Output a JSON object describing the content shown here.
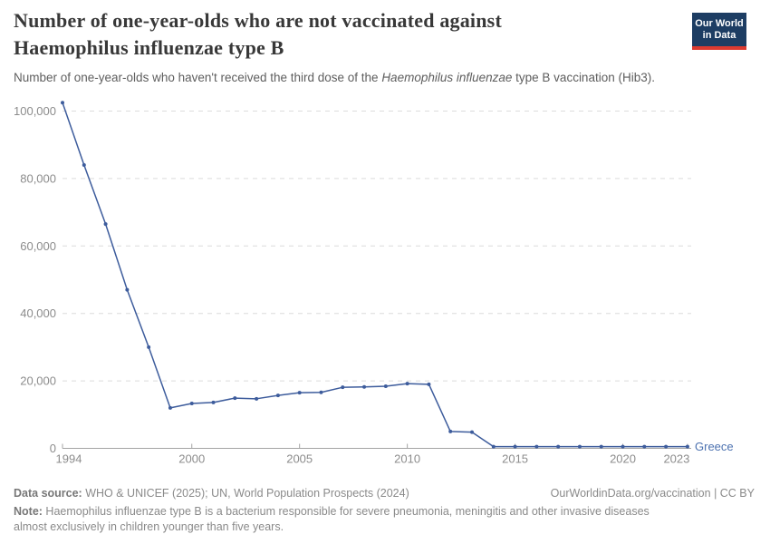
{
  "header": {
    "title": "Number of one-year-olds who are not vaccinated against Haemophilus influenzae type B",
    "subtitle_prefix": "Number of one-year-olds who haven't received the third dose of the ",
    "subtitle_italic": "Haemophilus influenzae",
    "subtitle_suffix": " type B vaccination (Hib3).",
    "logo_line1": "Our World",
    "logo_line2": "in Data"
  },
  "footer": {
    "data_source_label": "Data source:",
    "data_source_text": " WHO & UNICEF (2025); UN, World Population Prospects (2024)",
    "link_text": "OurWorldinData.org/vaccination | CC BY",
    "note_label": "Note:",
    "note_text": " Haemophilus influenzae type B is a bacterium responsible for severe pneumonia, meningitis and other invasive diseases almost exclusively in children younger than five years."
  },
  "theme": {
    "line_color": "#3d5c9c",
    "series_label_color": "#4d72b0",
    "logo_bg": "#1d3d63",
    "logo_red": "#dc3a30",
    "gridline_color": "#dcdcdc",
    "axis_color": "#a3a3a3",
    "tick_label_color": "#8c8c8c"
  },
  "chart_data": {
    "type": "line",
    "title": "Number of one-year-olds who are not vaccinated against Haemophilus influenzae type B",
    "xlabel": "",
    "ylabel": "",
    "xlim": [
      1994,
      2023
    ],
    "ylim": [
      0,
      100000
    ],
    "grid": "horizontal-dashed",
    "legend_position": "line-end-label",
    "xticks": [
      {
        "v": 1994,
        "label": "1994"
      },
      {
        "v": 2000,
        "label": "2000"
      },
      {
        "v": 2005,
        "label": "2005"
      },
      {
        "v": 2010,
        "label": "2010"
      },
      {
        "v": 2015,
        "label": "2015"
      },
      {
        "v": 2020,
        "label": "2020"
      },
      {
        "v": 2023,
        "label": "2023"
      }
    ],
    "yticks": [
      {
        "v": 0,
        "label": "0"
      },
      {
        "v": 20000,
        "label": "20,000"
      },
      {
        "v": 40000,
        "label": "40,000"
      },
      {
        "v": 60000,
        "label": "60,000"
      },
      {
        "v": 80000,
        "label": "80,000"
      },
      {
        "v": 100000,
        "label": "100,000"
      }
    ],
    "series": [
      {
        "name": "Greece",
        "color": "#3d5c9c",
        "x": [
          1994,
          1995,
          1996,
          1997,
          1998,
          1999,
          2000,
          2001,
          2002,
          2003,
          2004,
          2005,
          2006,
          2007,
          2008,
          2009,
          2010,
          2011,
          2012,
          2013,
          2014,
          2015,
          2016,
          2017,
          2018,
          2019,
          2020,
          2021,
          2022,
          2023
        ],
        "values": [
          102500,
          84000,
          66500,
          47000,
          30000,
          12000,
          13300,
          13600,
          14900,
          14700,
          15700,
          16500,
          16600,
          18100,
          18200,
          18400,
          19200,
          19000,
          5000,
          4800,
          500,
          500,
          500,
          500,
          500,
          500,
          500,
          500,
          500,
          500
        ]
      }
    ]
  }
}
